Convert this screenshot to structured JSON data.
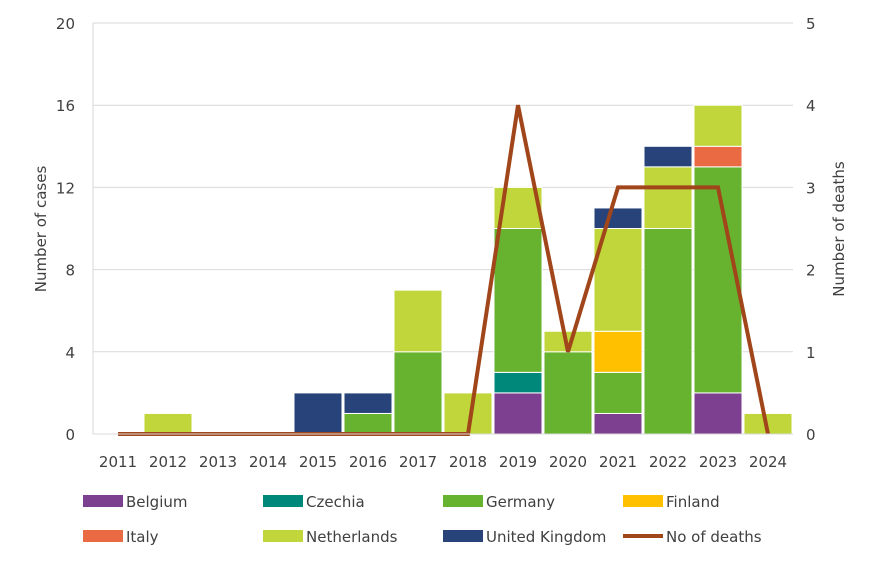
{
  "chart_data": {
    "type": "bar",
    "stacked": true,
    "categories": [
      "2011",
      "2012",
      "2013",
      "2014",
      "2015",
      "2016",
      "2017",
      "2018",
      "2019",
      "2020",
      "2021",
      "2022",
      "2023",
      "2024"
    ],
    "ylabel": "Number of cases",
    "y2label": "Number of deaths",
    "ylim": [
      0,
      20
    ],
    "yticks": [
      0,
      4,
      8,
      12,
      16,
      20
    ],
    "y2lim": [
      0,
      5
    ],
    "y2ticks": [
      0,
      1,
      2,
      3,
      4,
      5
    ],
    "grid": true,
    "legend_position": "bottom",
    "series": [
      {
        "name": "Belgium",
        "color": "#7d3f8f",
        "values": [
          0,
          0,
          0,
          0,
          0,
          0,
          0,
          0,
          2,
          0,
          1,
          0,
          2,
          0
        ]
      },
      {
        "name": "Czechia",
        "color": "#00897b",
        "values": [
          0,
          0,
          0,
          0,
          0,
          0,
          0,
          0,
          1,
          0,
          0,
          0,
          0,
          0
        ]
      },
      {
        "name": "Germany",
        "color": "#67b22e",
        "values": [
          0,
          0,
          0,
          0,
          0,
          1,
          4,
          0,
          7,
          4,
          2,
          10,
          11,
          0
        ]
      },
      {
        "name": "Finland",
        "color": "#ffc000",
        "values": [
          0,
          0,
          0,
          0,
          0,
          0,
          0,
          0,
          0,
          0,
          2,
          0,
          0,
          0
        ]
      },
      {
        "name": "Italy",
        "color": "#e96a43",
        "values": [
          0,
          0,
          0,
          0,
          0,
          0,
          0,
          0,
          0,
          0,
          0,
          0,
          1,
          0
        ]
      },
      {
        "name": "Netherlands",
        "color": "#c0d63a",
        "values": [
          0,
          1,
          0,
          0,
          0,
          0,
          3,
          2,
          2,
          1,
          5,
          3,
          2,
          1
        ]
      },
      {
        "name": "United Kingdom",
        "color": "#27437a",
        "values": [
          0,
          0,
          0,
          0,
          2,
          1,
          0,
          0,
          0,
          0,
          1,
          1,
          0,
          0
        ]
      }
    ],
    "line_series": {
      "name": "No of deaths",
      "color": "#a0461a",
      "axis": "right",
      "values": [
        0,
        0,
        0,
        0,
        0,
        0,
        0,
        0,
        4,
        1,
        3,
        3,
        3,
        0
      ]
    }
  }
}
